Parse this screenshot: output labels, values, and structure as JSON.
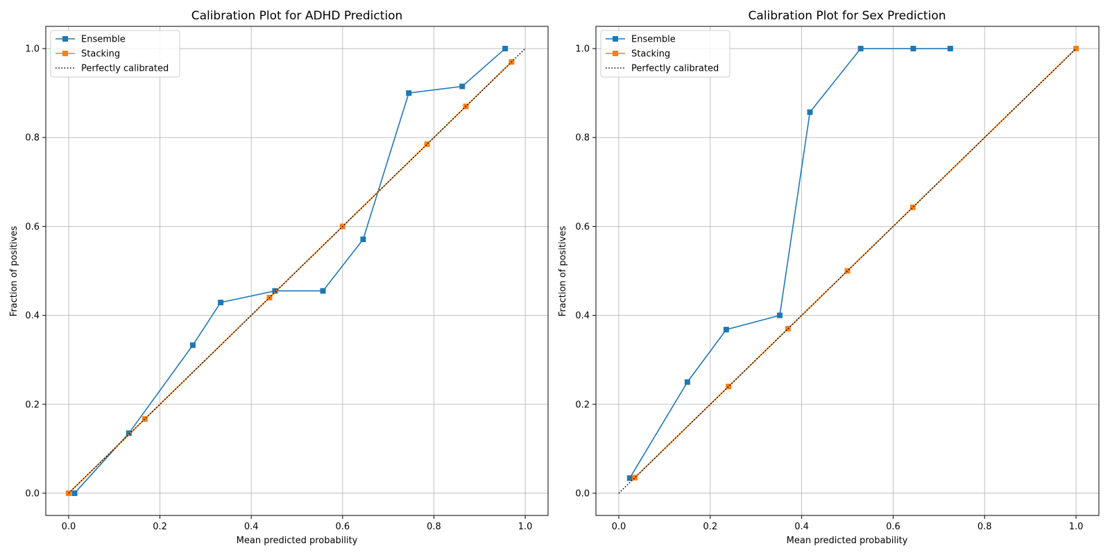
{
  "colors": {
    "ensemble": "#1f77b4",
    "stacking": "#ff7f0e",
    "perfect": "#000000",
    "grid": "#b0b0b0"
  },
  "chart_data": [
    {
      "type": "line",
      "title": "Calibration Plot for ADHD Prediction",
      "xlabel": "Mean predicted probability",
      "ylabel": "Fraction of positives",
      "xlim": [
        -0.05,
        1.05
      ],
      "ylim": [
        -0.05,
        1.05
      ],
      "xticks": [
        "0.0",
        "0.2",
        "0.4",
        "0.6",
        "0.8",
        "1.0"
      ],
      "yticks": [
        "0.0",
        "0.2",
        "0.4",
        "0.6",
        "0.8",
        "1.0"
      ],
      "grid": true,
      "legend_position": "top-left",
      "series": [
        {
          "name": "Ensemble",
          "marker": "square",
          "x": [
            0.013,
            0.132,
            0.272,
            0.333,
            0.452,
            0.557,
            0.645,
            0.745,
            0.862,
            0.956
          ],
          "y": [
            0.0,
            0.135,
            0.333,
            0.429,
            0.455,
            0.455,
            0.571,
            0.9,
            0.915,
            1.0
          ]
        },
        {
          "name": "Stacking",
          "marker": "square",
          "x": [
            0.0,
            0.167,
            0.44,
            0.6,
            0.785,
            0.87,
            0.97
          ],
          "y": [
            0.0,
            0.167,
            0.44,
            0.6,
            0.785,
            0.87,
            0.97
          ]
        },
        {
          "name": "Perfectly calibrated",
          "style": "dotted",
          "x": [
            0.0,
            1.0
          ],
          "y": [
            0.0,
            1.0
          ]
        }
      ]
    },
    {
      "type": "line",
      "title": "Calibration Plot for Sex Prediction",
      "xlabel": "Mean predicted probability",
      "ylabel": "Fraction of positives",
      "xlim": [
        -0.05,
        1.05
      ],
      "ylim": [
        -0.05,
        1.05
      ],
      "xticks": [
        "0.0",
        "0.2",
        "0.4",
        "0.6",
        "0.8",
        "1.0"
      ],
      "yticks": [
        "0.0",
        "0.2",
        "0.4",
        "0.6",
        "0.8",
        "1.0"
      ],
      "grid": true,
      "legend_position": "top-left",
      "series": [
        {
          "name": "Ensemble",
          "marker": "square",
          "x": [
            0.024,
            0.15,
            0.235,
            0.352,
            0.418,
            0.529,
            0.644,
            0.725
          ],
          "y": [
            0.034,
            0.25,
            0.368,
            0.4,
            0.857,
            1.0,
            1.0,
            1.0
          ]
        },
        {
          "name": "Stacking",
          "marker": "square",
          "x": [
            0.035,
            0.24,
            0.37,
            0.5,
            0.643,
            1.0
          ],
          "y": [
            0.035,
            0.24,
            0.37,
            0.5,
            0.643,
            1.0
          ]
        },
        {
          "name": "Perfectly calibrated",
          "style": "dotted",
          "x": [
            0.0,
            1.0
          ],
          "y": [
            0.0,
            1.0
          ]
        }
      ]
    }
  ]
}
